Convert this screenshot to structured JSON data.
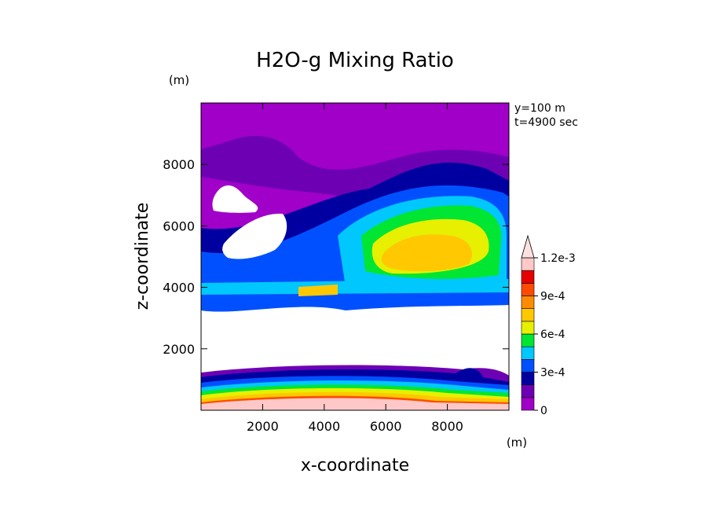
{
  "chart_data": {
    "type": "heatmap",
    "title": "H2O-g Mixing Ratio",
    "xlabel": "x-coordinate",
    "ylabel": "z-coordinate",
    "x_unit": "(m)",
    "y_unit": "(m)",
    "annotations": [
      "y=100 m",
      "t=4900 sec"
    ],
    "xlim": [
      0,
      10000
    ],
    "ylim": [
      0,
      10000
    ],
    "x_ticks": [
      2000,
      4000,
      6000,
      8000
    ],
    "y_ticks": [
      2000,
      4000,
      6000,
      8000
    ],
    "colorbar": {
      "levels": [
        0,
        0.0001,
        0.0002,
        0.0003,
        0.0004,
        0.0005,
        0.0006,
        0.0007,
        0.0008,
        0.0009,
        0.001,
        0.0011,
        0.0012
      ],
      "tick_labels": [
        "0",
        "3e-4",
        "6e-4",
        "9e-4",
        "1.2e-3"
      ],
      "tick_values": [
        0,
        0.0003,
        0.0006,
        0.0009,
        0.0012
      ],
      "colors": [
        "#a000c8",
        "#6e00b4",
        "#0000a0",
        "#0050ff",
        "#00c8ff",
        "#00e632",
        "#e6f000",
        "#ffc800",
        "#ff8c00",
        "#ff4b00",
        "#e60000",
        "#ffc8c8",
        "#ffe0e0"
      ],
      "extend": "max"
    },
    "features": [
      {
        "x": [
          0,
          10000
        ],
        "z": [
          0,
          500
        ],
        "value": 0.0012
      },
      {
        "x": [
          500,
          9500
        ],
        "z": [
          500,
          1000
        ],
        "value": 0.0008
      },
      {
        "x": [
          0,
          10000
        ],
        "z": [
          1300,
          3300
        ],
        "value": null
      },
      {
        "x": [
          4500,
          8500
        ],
        "z": [
          4500,
          6000
        ],
        "value": 0.0007
      },
      {
        "x": [
          5000,
          8000
        ],
        "z": [
          6000,
          7500
        ],
        "value": 0.0003
      },
      {
        "x": [
          0,
          10000
        ],
        "z": [
          7500,
          9800
        ],
        "value": 0.0
      }
    ]
  }
}
